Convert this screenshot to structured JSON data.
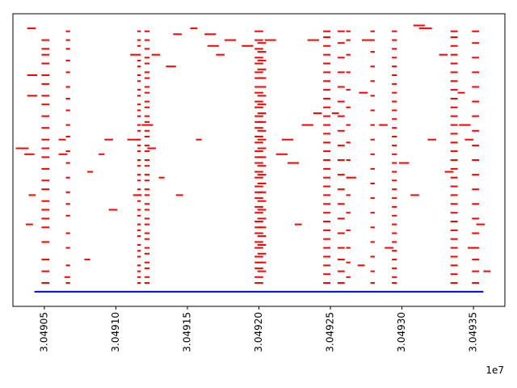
{
  "chart_data": {
    "type": "scatter",
    "marker": "horizontal-segment",
    "xlim": [
      30490280,
      30493720
    ],
    "ylim": [
      0,
      100
    ],
    "x_ticks": [
      30490500,
      30491000,
      30491500,
      30492000,
      30492500,
      30493000,
      30493500
    ],
    "x_tick_labels": [
      "3.04905",
      "3.04910",
      "3.04915",
      "3.04920",
      "3.04925",
      "3.04930",
      "3.04935"
    ],
    "x_offset_label": "1e7",
    "tick_label_rotation": 90,
    "grid": false,
    "baseline": {
      "x_start": 30490430,
      "x_end": 30493570,
      "y": 5,
      "color": "#0000ff"
    },
    "segments": {
      "color": "#ff0000",
      "column_starts": [
        30490480,
        30490650,
        30491150,
        30491200,
        30491970,
        30491990,
        30492450,
        30492550,
        30492610,
        30492780,
        30492930,
        30493340,
        30493490
      ],
      "column_ends": [
        30490535,
        30490680,
        30491175,
        30491235,
        30492030,
        30492050,
        30492500,
        30492600,
        30492640,
        30492810,
        30492965,
        30493390,
        30493540
      ],
      "column_rows": [
        [
          8,
          12,
          16,
          22,
          27,
          30,
          33,
          36,
          40,
          43,
          47,
          51,
          54,
          57,
          61,
          65,
          69,
          72,
          76,
          79,
          83,
          86,
          88,
          91
        ],
        [
          8,
          14,
          20,
          25,
          31,
          35,
          39,
          44,
          49,
          53,
          58,
          62,
          67,
          71,
          75,
          80,
          84,
          88,
          91,
          94
        ],
        [
          8,
          10,
          12,
          14,
          17,
          19,
          21,
          24,
          26,
          28,
          31,
          33,
          36,
          38,
          40,
          43,
          45,
          48,
          50,
          53,
          55,
          57,
          60,
          62,
          65,
          67,
          69,
          72,
          74,
          77,
          79,
          82,
          84,
          86,
          89,
          91,
          94
        ],
        [
          8,
          10,
          13,
          15,
          18,
          20,
          23,
          25,
          28,
          30,
          33,
          35,
          38,
          40,
          43,
          45,
          48,
          50,
          53,
          55,
          58,
          60,
          63,
          65,
          68,
          70,
          73,
          75,
          78,
          80,
          83,
          85,
          88,
          91,
          94
        ],
        [
          8,
          10,
          13,
          15,
          17,
          20,
          22,
          25,
          27,
          29,
          32,
          34,
          37,
          39,
          41,
          44,
          46,
          49,
          51,
          53,
          56,
          58,
          61,
          63,
          65,
          68,
          70,
          73,
          75,
          78,
          80,
          83,
          85,
          88,
          91,
          94
        ],
        [
          12,
          15,
          18,
          21,
          24,
          27,
          30,
          33,
          36,
          39,
          42,
          45,
          48,
          51,
          54,
          57,
          60,
          63,
          66,
          69,
          72,
          75,
          78,
          81,
          84,
          87,
          90
        ],
        [
          8,
          11,
          14,
          17,
          20,
          23,
          26,
          29,
          32,
          35,
          38,
          41,
          44,
          47,
          50,
          53,
          56,
          59,
          62,
          65,
          68,
          71,
          74,
          77,
          80,
          83,
          86,
          89,
          92,
          94
        ],
        [
          8,
          12,
          16,
          20,
          25,
          30,
          35,
          40,
          45,
          50,
          55,
          60,
          65,
          70,
          75,
          80,
          85,
          90,
          94
        ],
        [
          10,
          15,
          20,
          26,
          32,
          38,
          44,
          50,
          56,
          62,
          68,
          74,
          80,
          86,
          91,
          94
        ],
        [
          8,
          12,
          17,
          22,
          27,
          32,
          37,
          42,
          47,
          52,
          57,
          62,
          67,
          72,
          77,
          82,
          87,
          91,
          94
        ],
        [
          8,
          10,
          13,
          16,
          19,
          22,
          25,
          28,
          31,
          34,
          37,
          40,
          43,
          46,
          49,
          52,
          55,
          58,
          61,
          64,
          67,
          70,
          73,
          76,
          79,
          82,
          85,
          88,
          91,
          94
        ],
        [
          8,
          11,
          14,
          17,
          20,
          23,
          26,
          29,
          32,
          35,
          38,
          41,
          44,
          47,
          50,
          53,
          56,
          59,
          62,
          65,
          68,
          71,
          74,
          77,
          80,
          83,
          86,
          89,
          92,
          94
        ],
        [
          8,
          12,
          16,
          20,
          25,
          30,
          35,
          40,
          45,
          50,
          55,
          60,
          65,
          70,
          75,
          80,
          85,
          90,
          94
        ]
      ],
      "scattered": [
        [
          30490300,
          30490390,
          54
        ],
        [
          30490360,
          30490430,
          52
        ],
        [
          30490380,
          30490440,
          95
        ],
        [
          30490380,
          30490450,
          79
        ],
        [
          30490380,
          30490450,
          72
        ],
        [
          30490390,
          30490440,
          38
        ],
        [
          30490370,
          30490420,
          28
        ],
        [
          30490600,
          30490650,
          57
        ],
        [
          30490600,
          30490660,
          52
        ],
        [
          30490640,
          30490680,
          10
        ],
        [
          30490780,
          30490820,
          16
        ],
        [
          30490800,
          30490840,
          46
        ],
        [
          30490880,
          30490920,
          52
        ],
        [
          30490920,
          30490980,
          57
        ],
        [
          30490950,
          30491010,
          33
        ],
        [
          30491080,
          30491160,
          57
        ],
        [
          30491100,
          30491150,
          86
        ],
        [
          30491120,
          30491180,
          38
        ],
        [
          30491180,
          30491260,
          62
        ],
        [
          30491220,
          30491280,
          54
        ],
        [
          30491250,
          30491310,
          86
        ],
        [
          30491300,
          30491340,
          44
        ],
        [
          30491350,
          30491420,
          82
        ],
        [
          30491400,
          30491460,
          93
        ],
        [
          30491420,
          30491470,
          38
        ],
        [
          30491520,
          30491570,
          95
        ],
        [
          30491560,
          30491600,
          57
        ],
        [
          30491620,
          30491700,
          93
        ],
        [
          30491640,
          30491720,
          89
        ],
        [
          30491700,
          30491760,
          86
        ],
        [
          30491760,
          30491840,
          91
        ],
        [
          30491880,
          30491960,
          89
        ],
        [
          30492040,
          30492120,
          91
        ],
        [
          30492120,
          30492200,
          52
        ],
        [
          30492160,
          30492240,
          57
        ],
        [
          30492200,
          30492280,
          49
        ],
        [
          30492250,
          30492300,
          28
        ],
        [
          30492300,
          30492380,
          62
        ],
        [
          30492340,
          30492420,
          91
        ],
        [
          30492380,
          30492440,
          66
        ],
        [
          30492510,
          30492560,
          66
        ],
        [
          30492620,
          30492680,
          44
        ],
        [
          30492690,
          30492740,
          14
        ],
        [
          30492700,
          30492760,
          73
        ],
        [
          30492720,
          30492790,
          91
        ],
        [
          30492840,
          30492900,
          62
        ],
        [
          30492880,
          30492940,
          20
        ],
        [
          30492980,
          30493050,
          49
        ],
        [
          30493060,
          30493120,
          38
        ],
        [
          30493080,
          30493160,
          96
        ],
        [
          30493120,
          30493210,
          95
        ],
        [
          30493180,
          30493240,
          57
        ],
        [
          30493260,
          30493320,
          86
        ],
        [
          30493300,
          30493360,
          46
        ],
        [
          30493390,
          30493440,
          73
        ],
        [
          30493400,
          30493480,
          62
        ],
        [
          30493440,
          30493500,
          57
        ],
        [
          30493460,
          30493520,
          20
        ],
        [
          30493520,
          30493580,
          28
        ],
        [
          30493570,
          30493620,
          12
        ]
      ]
    }
  }
}
